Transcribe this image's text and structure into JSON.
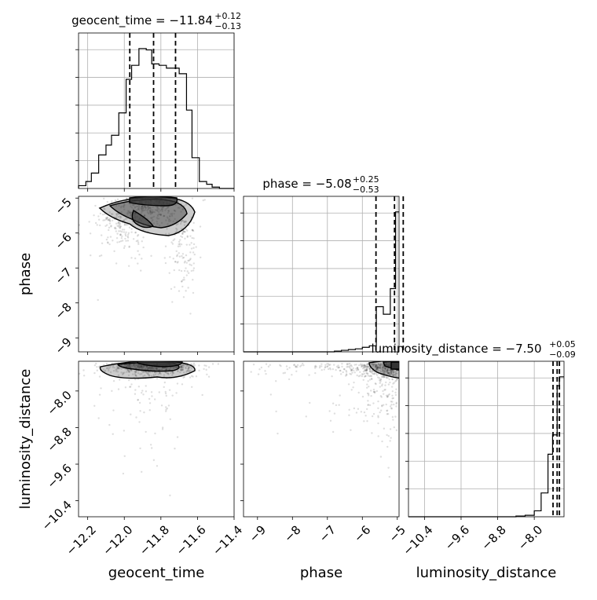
{
  "chart_data": {
    "type": "corner",
    "parameters": [
      "geocent_time",
      "phase",
      "luminosity_distance"
    ],
    "axis_labels": [
      "geocent_time",
      "phase",
      "luminosity_distance"
    ],
    "titles": [
      {
        "prefix": "geocent_time = ",
        "median": "−11.84",
        "plus": "+0.12",
        "minus": "−0.13"
      },
      {
        "prefix": "phase = ",
        "median": "−5.08",
        "plus": "+0.25",
        "minus": "−0.53"
      },
      {
        "prefix": "luminosity_distance = ",
        "median": "−7.50",
        "plus": "+0.05",
        "minus": "−0.09"
      }
    ],
    "ranges": [
      [
        -12.25,
        -11.4
      ],
      [
        -9.4,
        -4.95
      ],
      [
        -10.75,
        -7.35
      ]
    ],
    "ticks": [
      {
        "values": [
          -12.2,
          -12.0,
          -11.8,
          -11.6,
          -11.4
        ],
        "labels": [
          "−12.2",
          "−12.0",
          "−11.8",
          "−11.6",
          "−11.4"
        ]
      },
      {
        "values": [
          -9,
          -8,
          -7,
          -6,
          -5
        ],
        "labels": [
          "−9",
          "−8",
          "−7",
          "−6",
          "−5"
        ]
      },
      {
        "values": [
          -10.4,
          -9.6,
          -8.8,
          -8.0
        ],
        "labels": [
          "−10.4",
          "−9.6",
          "−8.8",
          "−8.0"
        ]
      }
    ],
    "quantiles": [
      [
        -11.97,
        -11.84,
        -11.72
      ],
      [
        -5.61,
        -5.08,
        -4.83
      ],
      [
        -7.59,
        -7.5,
        -7.45
      ]
    ],
    "histograms": [
      {
        "edges": [
          -12.25,
          -12.21,
          -12.18,
          -12.14,
          -12.1,
          -12.07,
          -12.03,
          -11.99,
          -11.96,
          -11.92,
          -11.88,
          -11.85,
          -11.81,
          -11.77,
          -11.74,
          -11.7,
          -11.66,
          -11.63,
          -11.59,
          -11.55,
          -11.52,
          -11.48,
          -11.44,
          -11.4
        ],
        "counts": [
          0.02,
          0.05,
          0.11,
          0.24,
          0.31,
          0.38,
          0.54,
          0.78,
          0.88,
          1.0,
          0.99,
          0.89,
          0.88,
          0.86,
          0.86,
          0.82,
          0.56,
          0.22,
          0.05,
          0.03,
          0.01,
          0.0,
          0.0
        ]
      },
      {
        "edges": [
          -9.4,
          -9.2,
          -9.0,
          -8.8,
          -8.6,
          -8.4,
          -8.2,
          -8.0,
          -7.8,
          -7.6,
          -7.4,
          -7.2,
          -7.0,
          -6.8,
          -6.6,
          -6.4,
          -6.2,
          -6.0,
          -5.8,
          -5.6,
          -5.4,
          -5.2,
          -5.05,
          -4.95
        ],
        "counts": [
          0.0,
          0.0,
          0.0,
          0.0,
          0.0,
          0.0,
          0.0,
          0.0,
          0.0,
          0.0,
          0.0,
          0.0,
          0.0,
          0.005,
          0.01,
          0.015,
          0.02,
          0.03,
          0.04,
          0.3,
          0.25,
          0.42,
          0.93
        ]
      },
      {
        "edges": [
          -10.75,
          -10.6,
          -10.4,
          -10.2,
          -10.0,
          -9.8,
          -9.6,
          -9.4,
          -9.2,
          -9.0,
          -8.8,
          -8.6,
          -8.4,
          -8.2,
          -8.0,
          -7.85,
          -7.7,
          -7.6,
          -7.5,
          -7.45,
          -7.4,
          -7.35
        ],
        "counts": [
          0.0,
          0.0,
          0.0,
          0.0,
          0.0,
          0.0,
          0.0,
          0.0,
          0.0,
          0.0,
          0.0,
          0.0,
          0.005,
          0.01,
          0.04,
          0.16,
          0.42,
          0.55,
          0.88,
          0.94,
          0.94
        ]
      }
    ],
    "grid": true
  }
}
